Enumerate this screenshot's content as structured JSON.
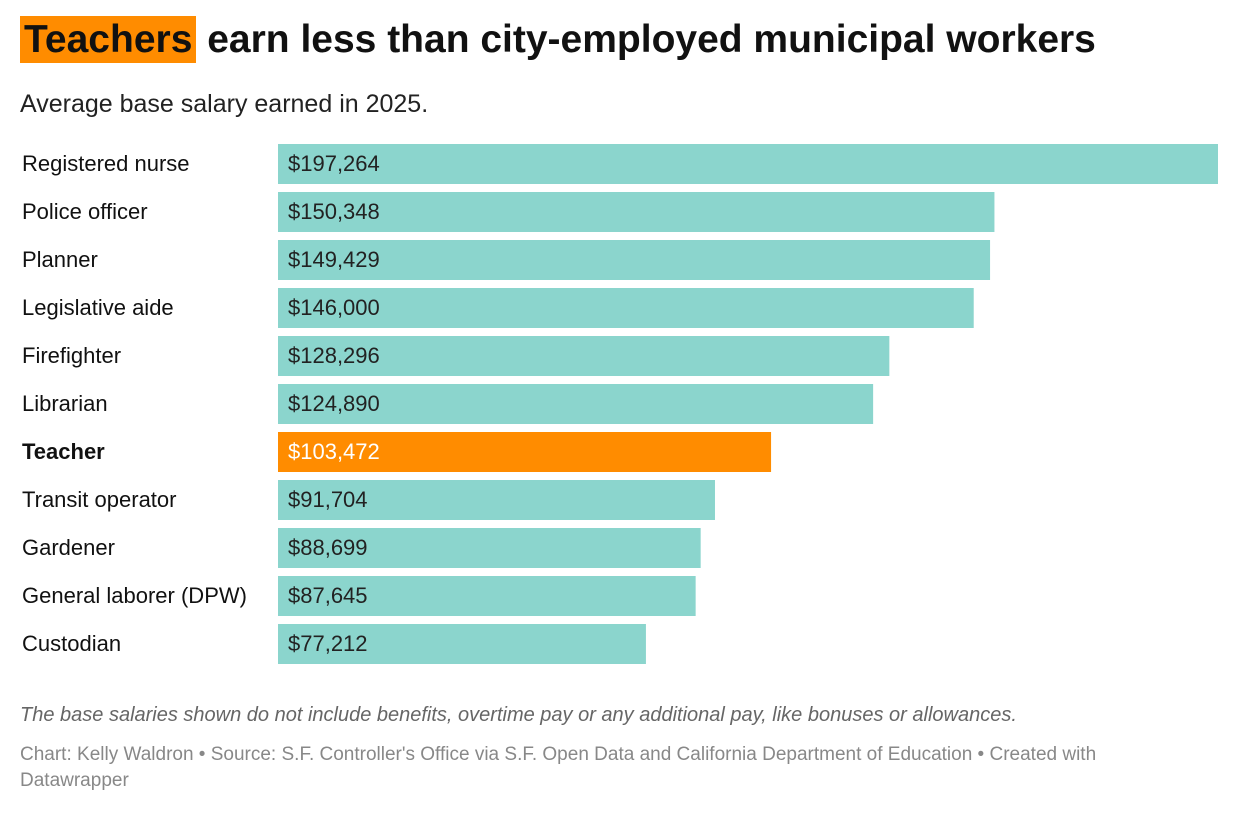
{
  "chart_data": {
    "type": "bar",
    "title_highlight": "Teachers",
    "title": "earn less than city-employed municipal workers",
    "subtitle": "Average base salary earned in 2025.",
    "categories": [
      "Registered nurse",
      "Police officer",
      "Planner",
      "Legislative aide",
      "Firefighter",
      "Librarian",
      "Teacher",
      "Transit operator",
      "Gardener",
      "General laborer (DPW)",
      "Custodian"
    ],
    "values": [
      197264,
      150348,
      149429,
      146000,
      128296,
      124890,
      103472,
      91704,
      88699,
      87645,
      77212
    ],
    "value_labels": [
      "$197,264",
      "$150,348",
      "$149,429",
      "$146,000",
      "$128,296",
      "$124,890",
      "$103,472",
      "$91,704",
      "$88,699",
      "$87,645",
      "$77,212"
    ],
    "color": "#8bd5cd",
    "highlight_color": "#ff8c00",
    "colors": [
      "#8bd5cd",
      "#8bd5cd",
      "#8bd5cd",
      "#8bd5cd",
      "#8bd5cd",
      "#8bd5cd",
      "#ff8c00",
      "#8bd5cd",
      "#8bd5cd",
      "#8bd5cd",
      "#8bd5cd"
    ],
    "note": "The base salaries shown do not include benefits, overtime pay or any additional pay, like bonuses or allowances.",
    "source": "Chart: Kelly Waldron • Source: S.F. Controller's Office via S.F. Open Data and California Department of Education • Created with Datawrapper"
  }
}
